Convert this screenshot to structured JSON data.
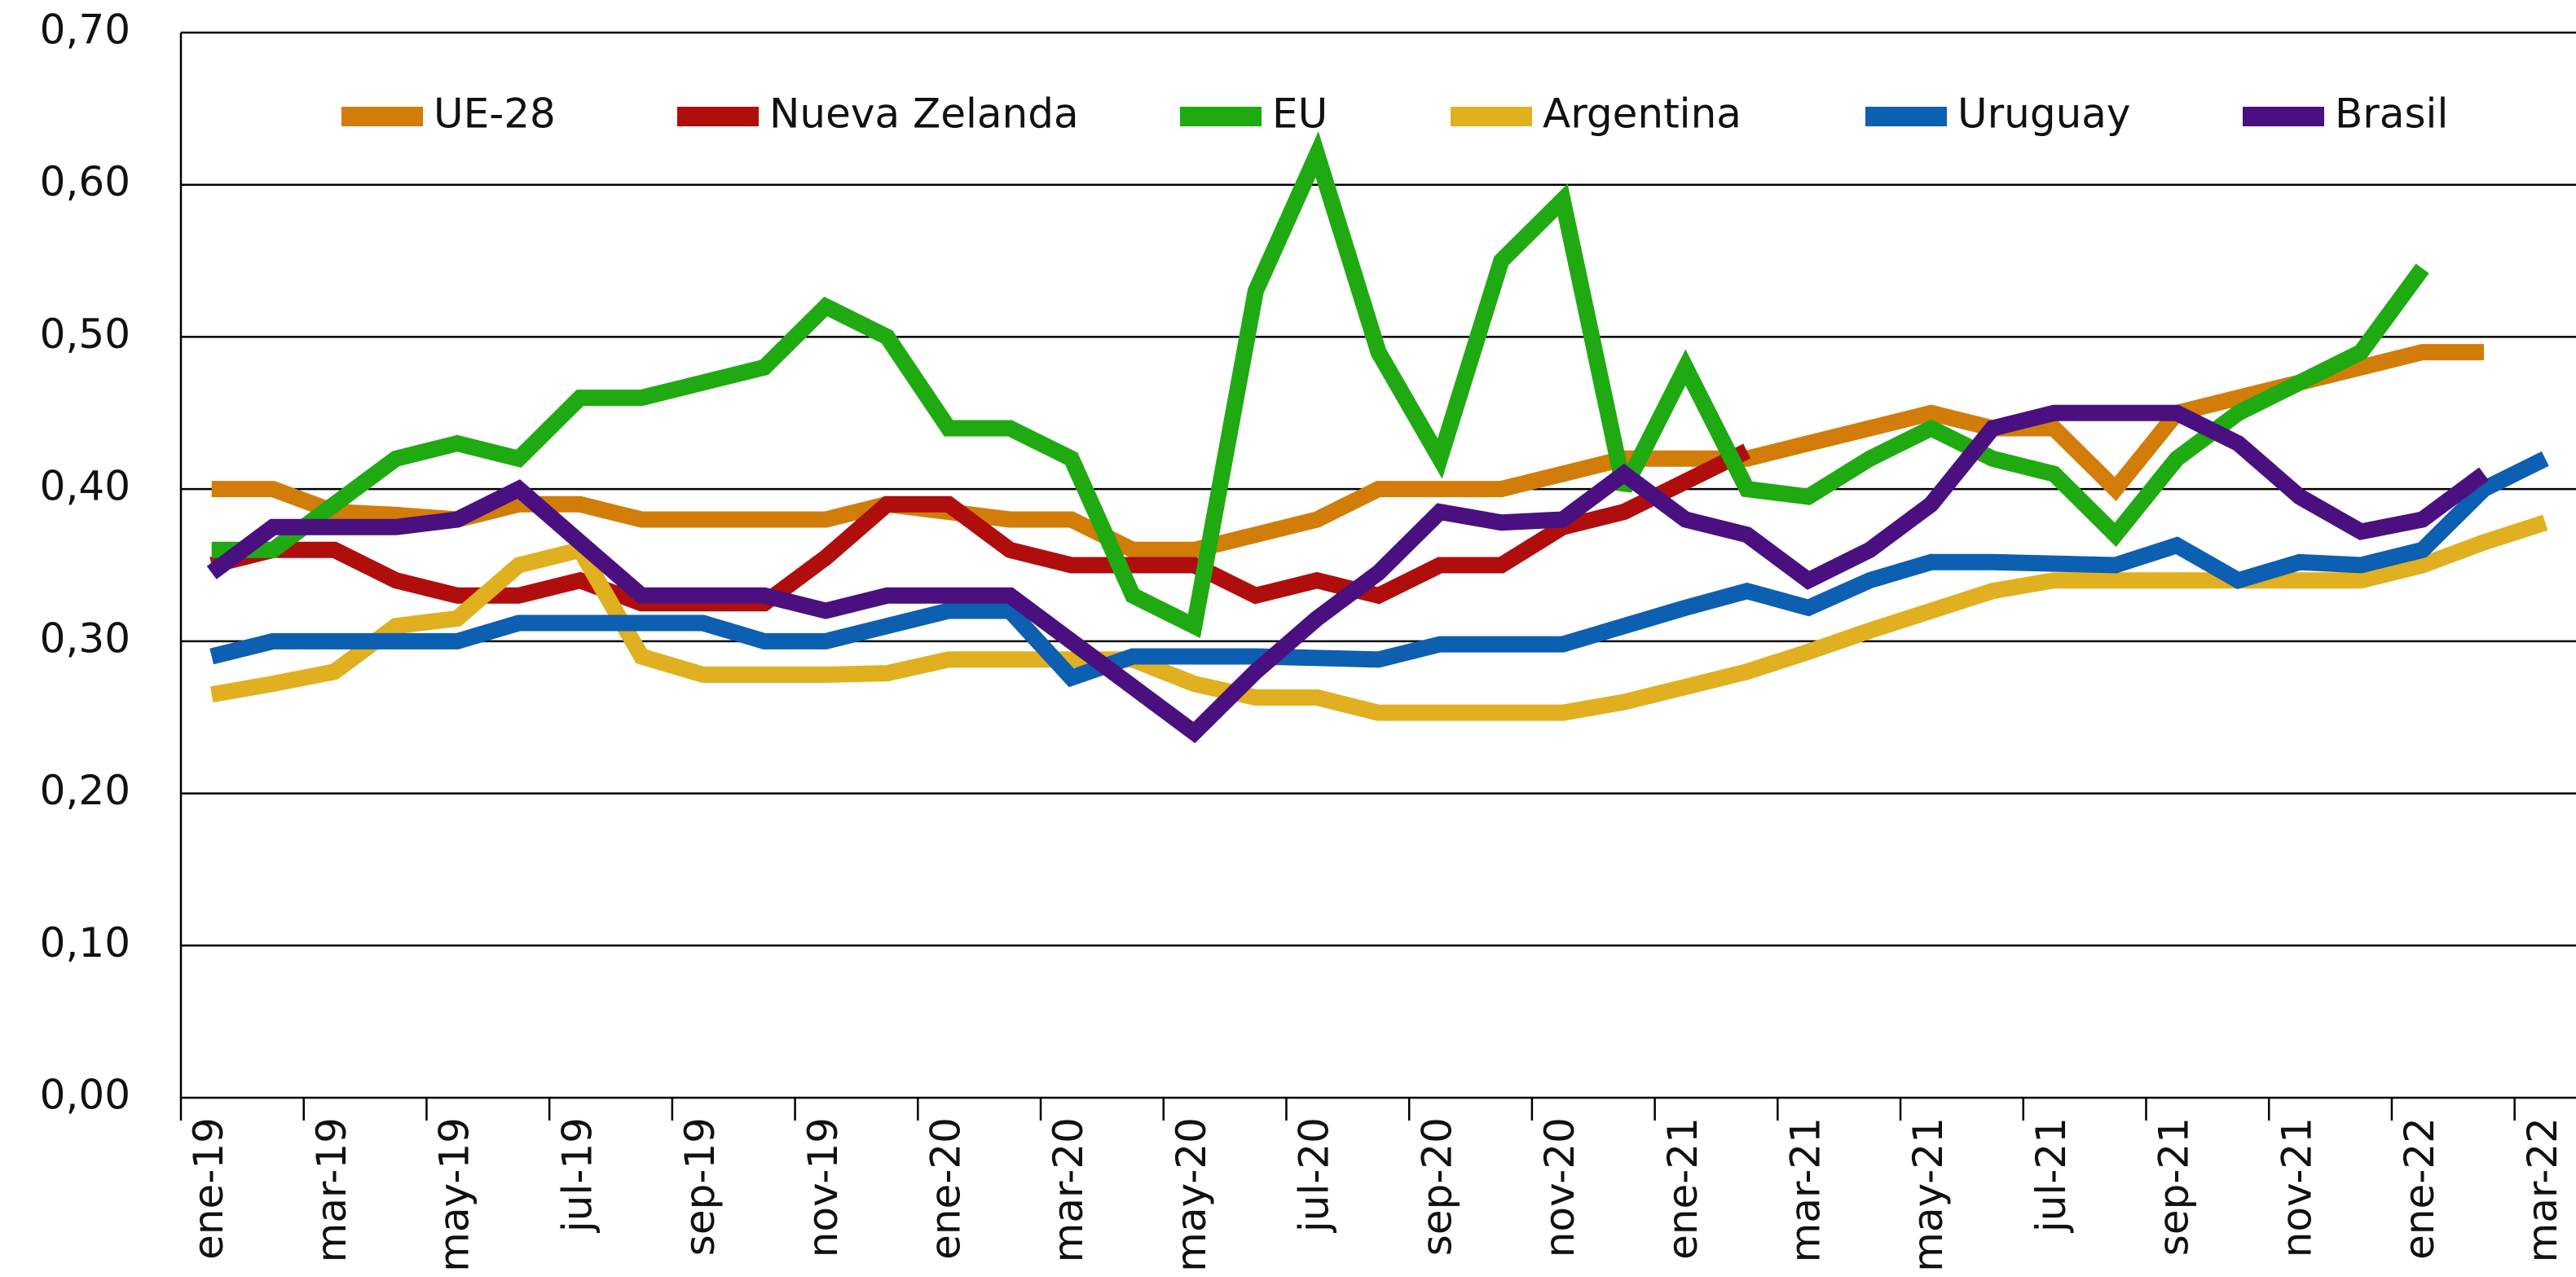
{
  "chart_data": {
    "type": "line",
    "categories": [
      "ene-19",
      null,
      "mar-19",
      null,
      "may-19",
      null,
      "jul-19",
      null,
      "sep-19",
      null,
      "nov-19",
      null,
      "ene-20",
      null,
      "mar-20",
      null,
      "may-20",
      null,
      "jul-20",
      null,
      "sep-20",
      null,
      "nov-20",
      null,
      "ene-21",
      null,
      "mar-21",
      null,
      "may-21",
      null,
      "jul-21",
      null,
      "sep-21",
      null,
      "nov-21",
      null,
      "ene-22",
      null,
      "mar-22"
    ],
    "series": [
      {
        "name": "UE-28",
        "color": "#d27d0a",
        "values": [
          0.4,
          0.4,
          0.385,
          0.383,
          0.38,
          0.39,
          0.39,
          0.38,
          0.38,
          0.38,
          0.38,
          0.39,
          0.385,
          0.38,
          0.38,
          0.36,
          0.36,
          0.37,
          0.38,
          0.4,
          0.4,
          0.4,
          0.41,
          0.42,
          0.42,
          0.42,
          0.43,
          0.44,
          0.45,
          0.44,
          0.44,
          0.4,
          0.45,
          0.46,
          0.47,
          0.48,
          0.49,
          0.49,
          null
        ]
      },
      {
        "name": "Nueva Zelanda",
        "color": "#b00d0d",
        "values": [
          0.35,
          0.36,
          0.36,
          0.34,
          0.33,
          0.33,
          0.34,
          0.325,
          0.325,
          0.325,
          0.355,
          0.39,
          0.39,
          0.36,
          0.35,
          0.35,
          0.35,
          0.33,
          0.34,
          0.33,
          0.35,
          0.35,
          0.375,
          0.385,
          0.405,
          0.425,
          null,
          null,
          null,
          null,
          null,
          null,
          null,
          null,
          null,
          null,
          null,
          null,
          null
        ]
      },
      {
        "name": "EU",
        "color": "#1faa12",
        "values": [
          0.36,
          0.36,
          0.39,
          0.42,
          0.43,
          0.42,
          0.46,
          0.46,
          0.47,
          0.48,
          0.52,
          0.5,
          0.44,
          0.44,
          0.42,
          0.33,
          0.31,
          0.53,
          0.62,
          0.49,
          0.42,
          0.55,
          0.59,
          0.4,
          0.48,
          0.4,
          0.395,
          0.42,
          0.44,
          0.42,
          0.41,
          0.37,
          0.42,
          0.45,
          0.47,
          0.49,
          0.545,
          null,
          null
        ]
      },
      {
        "name": "Argentina",
        "color": "#e0b020",
        "values": [
          0.265,
          0.272,
          0.28,
          0.31,
          0.315,
          0.35,
          0.36,
          0.29,
          0.278,
          0.278,
          0.278,
          0.279,
          0.288,
          0.288,
          0.288,
          0.288,
          0.272,
          0.263,
          0.263,
          0.253,
          0.253,
          0.253,
          0.253,
          0.26,
          0.27,
          0.28,
          0.293,
          0.307,
          0.32,
          0.333,
          0.34,
          0.34,
          0.34,
          0.34,
          0.34,
          0.34,
          0.35,
          0.365,
          0.378
        ]
      },
      {
        "name": "Uruguay",
        "color": "#0d5fb2",
        "values": [
          0.29,
          0.3,
          0.3,
          0.3,
          0.3,
          0.312,
          0.312,
          0.312,
          0.312,
          0.3,
          0.3,
          0.31,
          0.32,
          0.32,
          0.276,
          0.29,
          0.29,
          0.29,
          0.289,
          0.288,
          0.298,
          0.298,
          0.298,
          0.31,
          0.322,
          0.333,
          0.322,
          0.34,
          0.352,
          0.352,
          0.351,
          0.35,
          0.363,
          0.34,
          0.352,
          0.35,
          0.36,
          0.4,
          0.42
        ]
      },
      {
        "name": "Brasil",
        "color": "#4a1080",
        "values": [
          0.345,
          0.375,
          0.375,
          0.375,
          0.38,
          0.4,
          0.365,
          0.33,
          0.33,
          0.33,
          0.32,
          0.33,
          0.33,
          0.33,
          0.3,
          0.27,
          0.24,
          0.28,
          0.315,
          0.345,
          0.385,
          0.378,
          0.38,
          0.41,
          0.38,
          0.37,
          0.34,
          0.36,
          0.39,
          0.44,
          0.45,
          0.45,
          0.45,
          0.43,
          0.395,
          0.372,
          0.38,
          0.41,
          null
        ]
      }
    ],
    "ylim": [
      0,
      0.7
    ],
    "yticks": [
      {
        "value": 0,
        "label": "0,00"
      },
      {
        "value": 0.1,
        "label": "0,10"
      },
      {
        "value": 0.2,
        "label": "0,20"
      },
      {
        "value": 0.3,
        "label": "0,30"
      },
      {
        "value": 0.4,
        "label": "0,40"
      },
      {
        "value": 0.5,
        "label": "0,50"
      },
      {
        "value": 0.6,
        "label": "0,60"
      },
      {
        "value": 0.7,
        "label": "0,70"
      }
    ],
    "grid": true,
    "legend": "top"
  }
}
